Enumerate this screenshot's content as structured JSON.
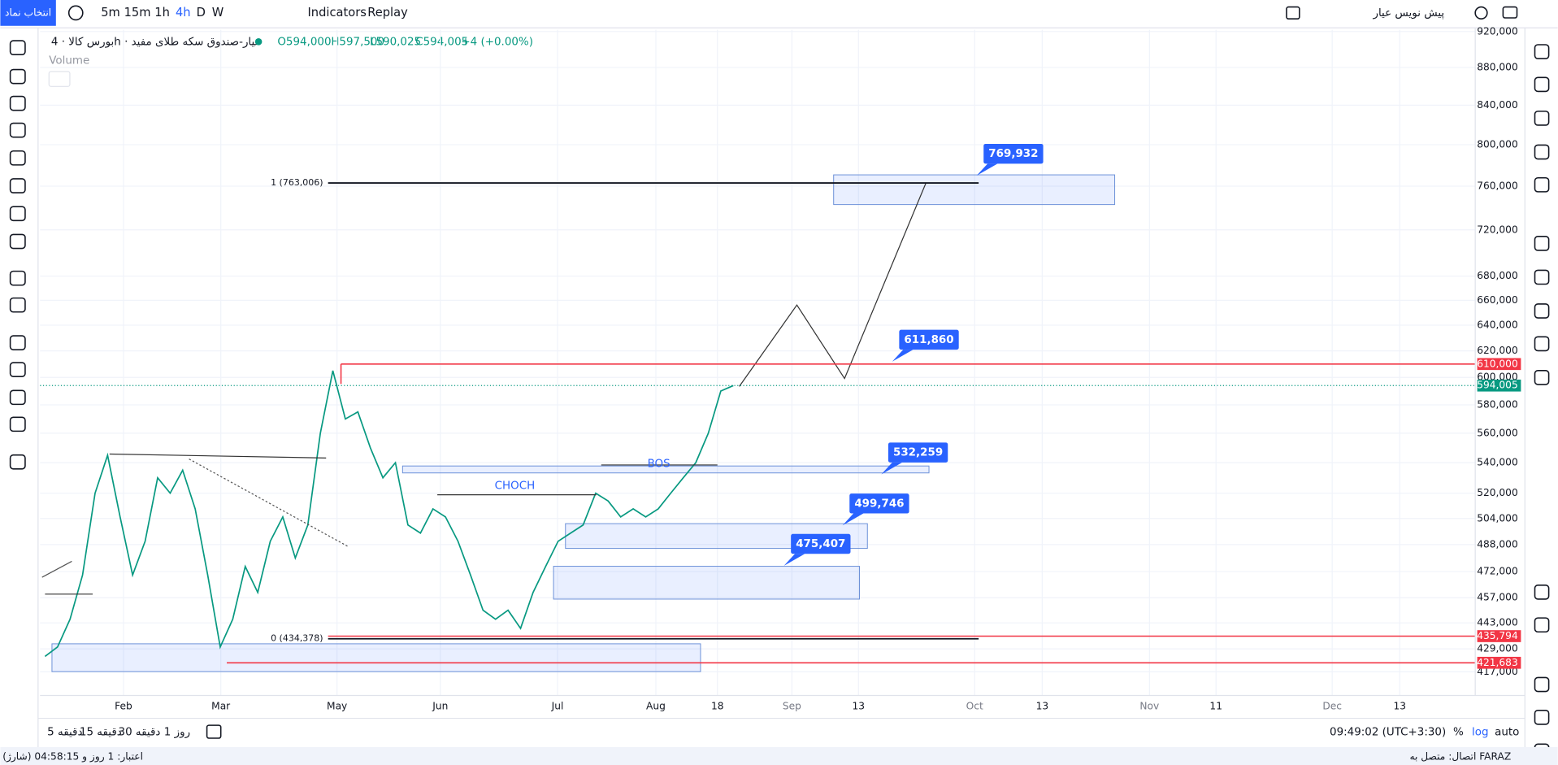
{
  "toolbar": {
    "symbol_button": "انتخاب نماد",
    "intervals": [
      "5m",
      "15m",
      "1h",
      "4h",
      "D",
      "W"
    ],
    "indicators": "Indicators",
    "replay": "Replay",
    "layout_name": "پیش نویس عیار"
  },
  "legend": {
    "symbol": "بورس کالا · 4h · عیار-صندوق سکه طلای مفید",
    "open": "O594,000",
    "high": "H597,500",
    "low": "L590,025",
    "close": "C594,005",
    "change": "+4 (+0.00%)",
    "volume": "Volume"
  },
  "chart": {
    "ylim": [
      410000,
      922000
    ],
    "log": true,
    "yticks": [
      {
        "value": 920000,
        "label": "920,000"
      },
      {
        "value": 880000,
        "label": "880,000"
      },
      {
        "value": 840000,
        "label": "840,000"
      },
      {
        "value": 800000,
        "label": "800,000"
      },
      {
        "value": 760000,
        "label": "760,000"
      },
      {
        "value": 720000,
        "label": "720,000"
      },
      {
        "value": 680000,
        "label": "680,000"
      },
      {
        "value": 660000,
        "label": "660,000"
      },
      {
        "value": 640000,
        "label": "640,000"
      },
      {
        "value": 620000,
        "label": "620,000"
      },
      {
        "value": 600000,
        "label": "600,000"
      },
      {
        "value": 580000,
        "label": "580,000"
      },
      {
        "value": 560000,
        "label": "560,000"
      },
      {
        "value": 540000,
        "label": "540,000"
      },
      {
        "value": 520000,
        "label": "520,000"
      },
      {
        "value": 504000,
        "label": "504,000"
      },
      {
        "value": 488000,
        "label": "488,000"
      },
      {
        "value": 472000,
        "label": "472,000"
      },
      {
        "value": 457000,
        "label": "457,000"
      },
      {
        "value": 443000,
        "label": "443,000"
      },
      {
        "value": 429000,
        "label": "429,000"
      },
      {
        "value": 417000,
        "label": "417,000"
      }
    ],
    "time_labels": [
      "Feb",
      "Mar",
      "May",
      "Jun",
      "Jul",
      "Aug",
      "18",
      "Sep",
      "13",
      "Oct",
      "13",
      "Nov",
      "11",
      "Dec",
      "13"
    ],
    "closes": [
      425000,
      430000,
      445000,
      470000,
      520000,
      545000,
      505000,
      470000,
      490000,
      530000,
      520000,
      535000,
      510000,
      470000,
      430000,
      445000,
      475000,
      460000,
      490000,
      505000,
      480000,
      500000,
      560000,
      605000,
      570000,
      575000,
      550000,
      530000,
      540000,
      500000,
      495000,
      510000,
      505000,
      490000,
      470000,
      450000,
      445000,
      450000,
      440000,
      460000,
      475000,
      490000,
      495000,
      500000,
      520000,
      515000,
      505000,
      510000,
      505000,
      510000,
      520000,
      530000,
      540000,
      560000,
      590000,
      594005
    ],
    "price_color": "#089981",
    "levels": [
      {
        "value": 610000,
        "label": "610,000"
      },
      {
        "value": 435794,
        "label": "435,794"
      },
      {
        "value": 421683,
        "label": "421,683"
      }
    ],
    "last_price": {
      "value": 594005,
      "label": "594,005"
    },
    "fib": [
      {
        "value": 763006,
        "label": "1 (763,006)"
      },
      {
        "value": 434378,
        "label": "0 (434,378)"
      }
    ],
    "zones": [
      {
        "top": 770700,
        "bottom": 742900
      },
      {
        "top": 537800,
        "bottom": 533200
      },
      {
        "top": 500800,
        "bottom": 485700
      },
      {
        "top": 475100,
        "bottom": 456200
      },
      {
        "top": 431700,
        "bottom": 417100
      }
    ],
    "targets": [
      {
        "value": 769932,
        "label": "769,932"
      },
      {
        "value": 611860,
        "label": "611,860"
      },
      {
        "value": 532259,
        "label": "532,259"
      },
      {
        "value": 499746,
        "label": "499,746"
      },
      {
        "value": 475407,
        "label": "475,407"
      }
    ],
    "notes": [
      "CHOCH",
      "BOS"
    ]
  },
  "bottom_bar": {
    "ranges": [
      "5 دقیقه",
      "15 دقیقه",
      "30 دقیقه",
      "1 روز"
    ],
    "clock": "09:49:02 (UTC+3:30)",
    "percent": "%",
    "log": "log",
    "auto": "auto"
  },
  "status_bar": {
    "credit": "اعتبار: 1 روز و 04:58:15 (شارژ)",
    "connection": "اتصال: متصل به FARAZ"
  }
}
